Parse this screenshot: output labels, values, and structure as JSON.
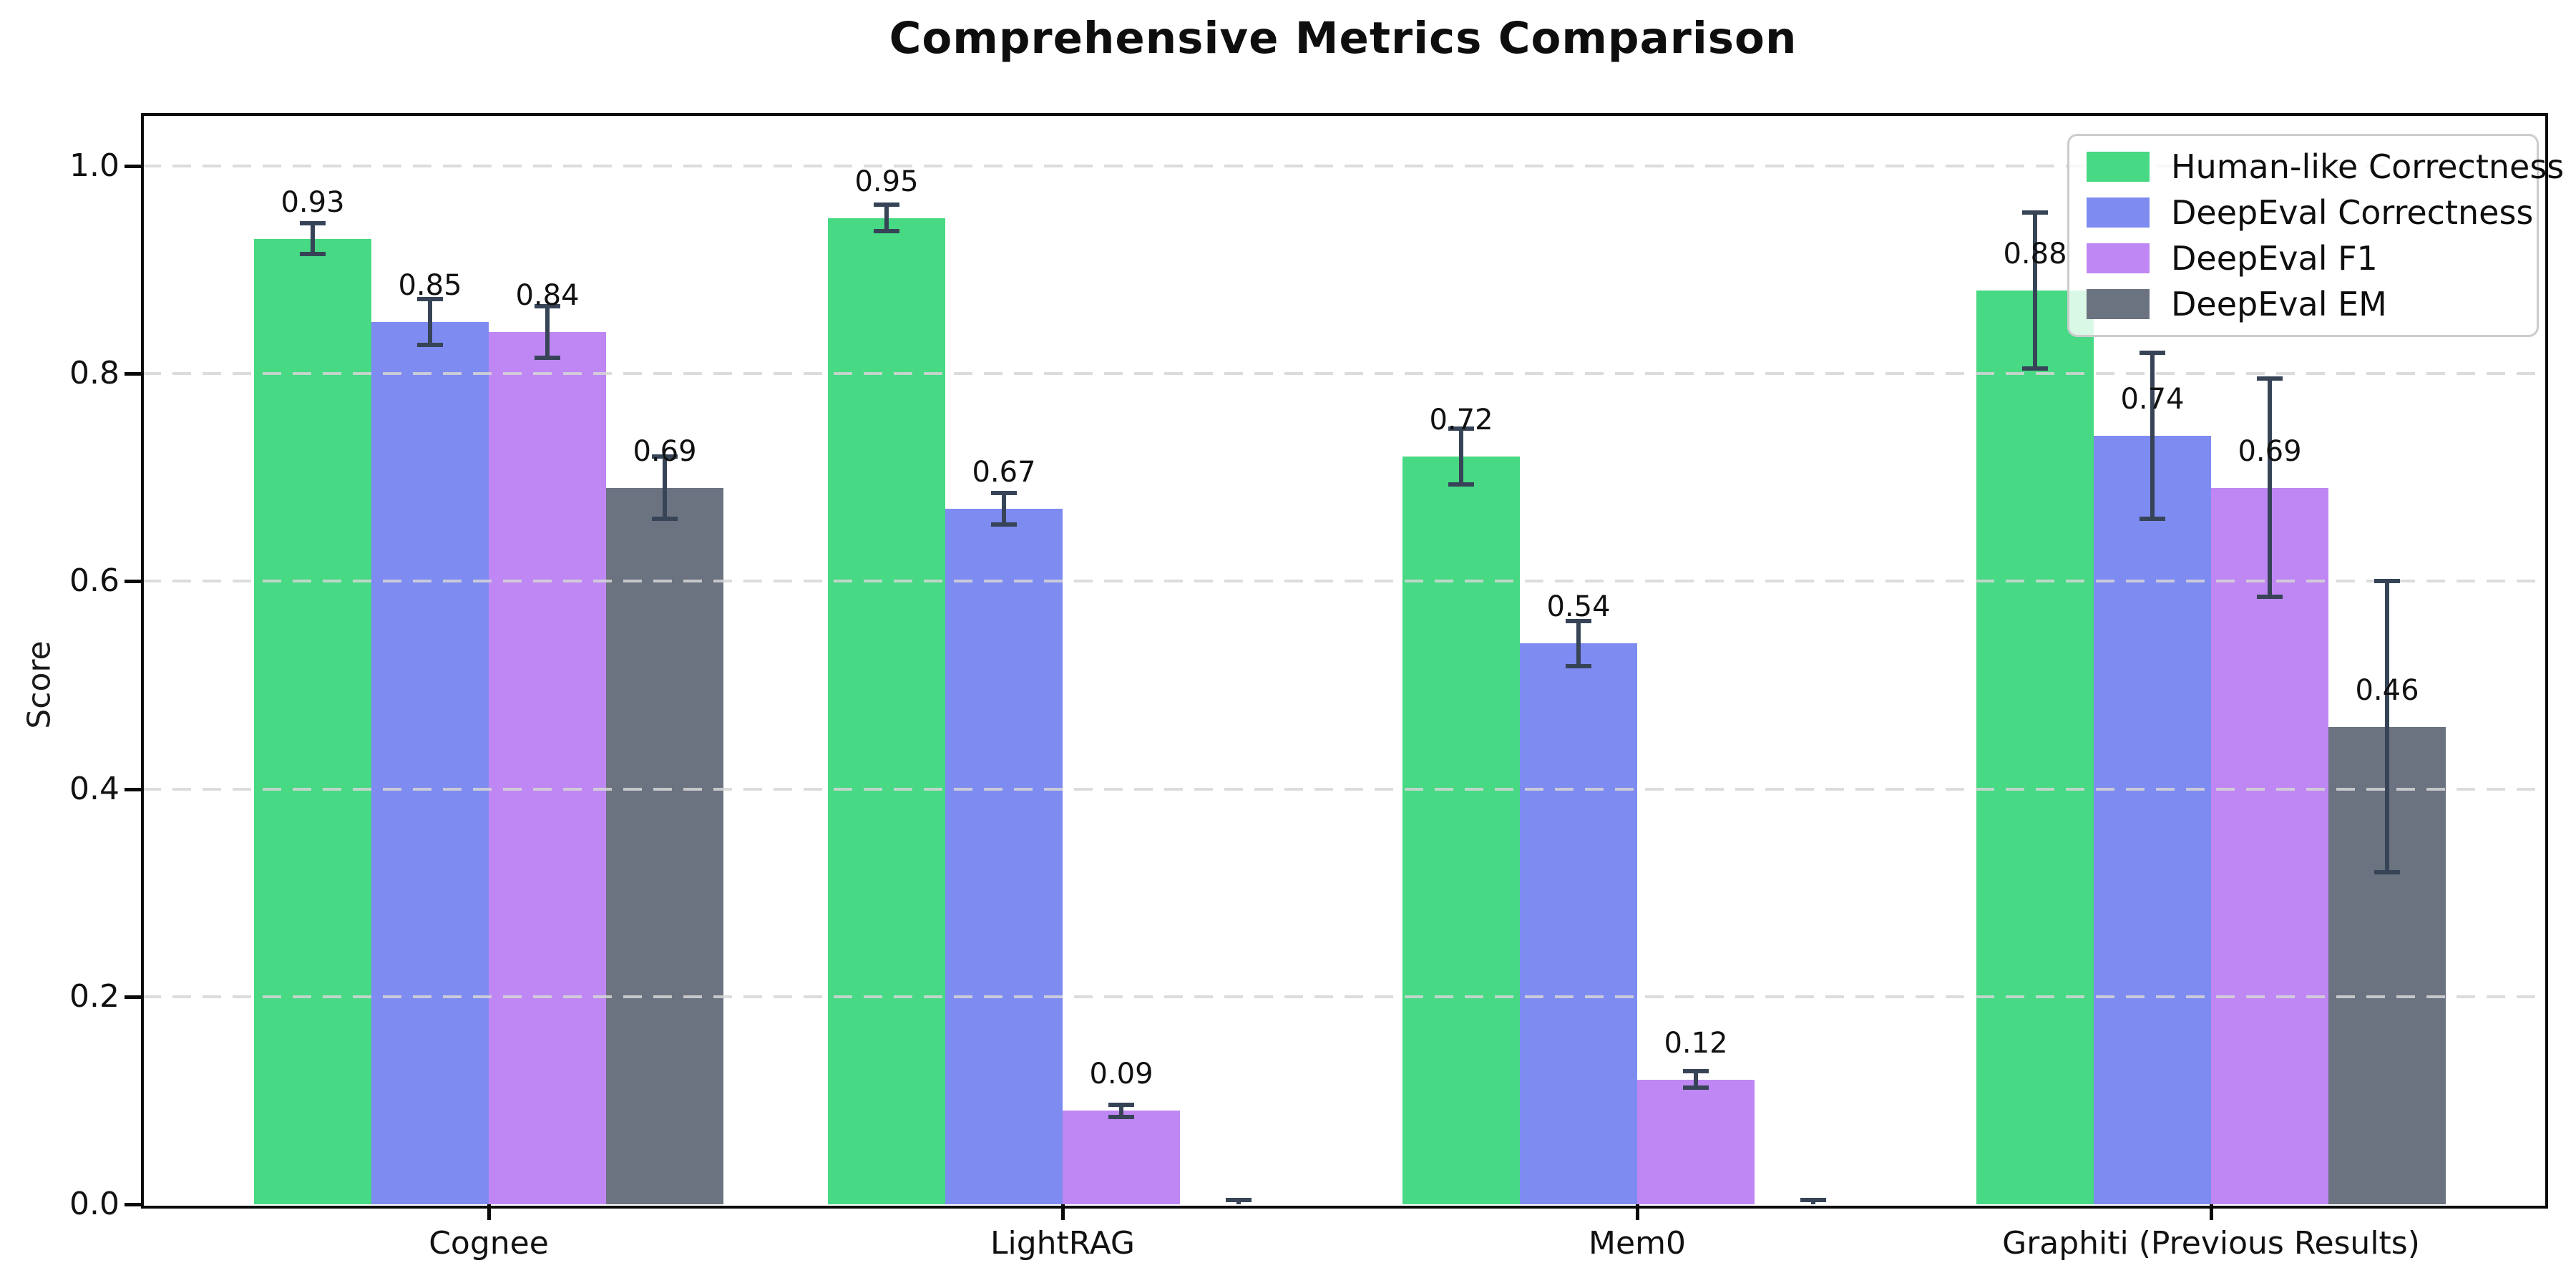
{
  "title": "Comprehensive Metrics Comparison",
  "y_axis": {
    "label": "Score",
    "tick_labels": [
      "0.0",
      "0.2",
      "0.4",
      "0.6",
      "0.8",
      "1.0"
    ],
    "tick_values": [
      0.0,
      0.2,
      0.4,
      0.6,
      0.8,
      1.0
    ]
  },
  "x_axis": {
    "tick_labels": [
      "Cognee",
      "LightRAG",
      "Mem0",
      "Graphiti (Previous Results)"
    ]
  },
  "legend": {
    "position": "upper right",
    "items": [
      {
        "label": "Human-like Correctness",
        "color": "#47d983"
      },
      {
        "label": "DeepEval Correctness",
        "color": "#7e8bf0"
      },
      {
        "label": "DeepEval F1",
        "color": "#bf87f3"
      },
      {
        "label": "DeepEval EM",
        "color": "#6b7280"
      }
    ]
  },
  "colors": {
    "human_like_correctness": "#47d983",
    "deepeval_correctness": "#7e8bf0",
    "deepeval_f1": "#bf87f3",
    "deepeval_em": "#6b7280",
    "error_bar": "#374457",
    "gridline": "#d6d6d6",
    "axis_frame": "#0a0a0a"
  },
  "chart_data": {
    "type": "bar",
    "title": "Comprehensive Metrics Comparison",
    "xlabel": "",
    "ylabel": "Score",
    "ylim": [
      0,
      1.05
    ],
    "grid": "horizontal dashed",
    "legend_position": "upper right",
    "categories": [
      "Cognee",
      "LightRAG",
      "Mem0",
      "Graphiti (Previous Results)"
    ],
    "series": [
      {
        "name": "Human-like Correctness",
        "color": "#47d983",
        "values": [
          0.93,
          0.95,
          0.72,
          0.88
        ],
        "errors": [
          0.015,
          0.013,
          0.027,
          0.075
        ],
        "labels": [
          "0.93",
          "0.95",
          "0.72",
          "0.88"
        ]
      },
      {
        "name": "DeepEval Correctness",
        "color": "#7e8bf0",
        "values": [
          0.85,
          0.67,
          0.54,
          0.74
        ],
        "errors": [
          0.022,
          0.015,
          0.022,
          0.08
        ],
        "labels": [
          "0.85",
          "0.67",
          "0.54",
          "0.74"
        ]
      },
      {
        "name": "DeepEval F1",
        "color": "#bf87f3",
        "values": [
          0.84,
          0.09,
          0.12,
          0.69
        ],
        "errors": [
          0.025,
          0.006,
          0.008,
          0.105
        ],
        "labels": [
          "0.84",
          "0.09",
          "0.12",
          "0.69"
        ]
      },
      {
        "name": "DeepEval EM",
        "color": "#6b7280",
        "values": [
          0.69,
          0.0,
          0.0,
          0.46
        ],
        "errors": [
          0.03,
          0.004,
          0.004,
          0.14
        ],
        "labels": [
          "0.69",
          "",
          "",
          "0.46"
        ]
      }
    ]
  }
}
